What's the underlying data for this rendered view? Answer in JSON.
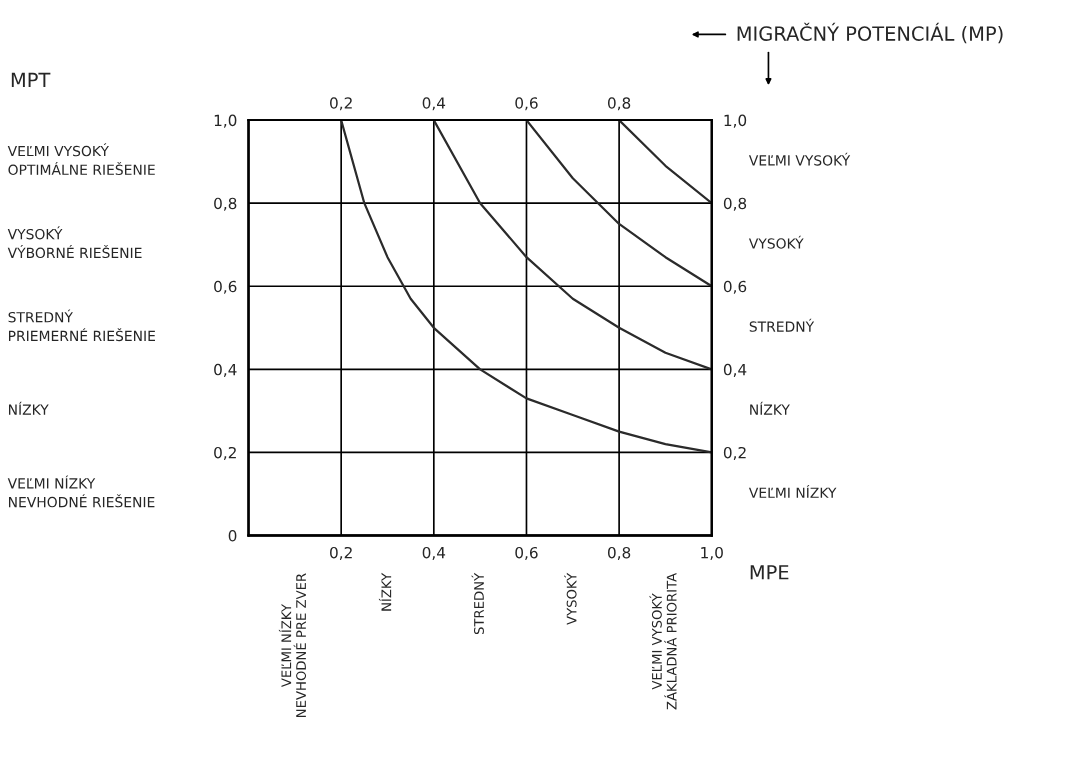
{
  "chart_data": {
    "type": "line",
    "title": "MIGRAČNÝ POTENCIÁL (MP)",
    "xlabel": "MPE",
    "xlim": [
      0,
      1
    ],
    "ylim": [
      0,
      1
    ],
    "y2lim": [
      0,
      1
    ],
    "x2lim": [
      0,
      1
    ],
    "xticks": [
      {
        "value": 0.2,
        "label": "0,2"
      },
      {
        "value": 0.4,
        "label": "0,4"
      },
      {
        "value": 0.6,
        "label": "0,6"
      },
      {
        "value": 0.8,
        "label": "0,8"
      },
      {
        "value": 1.0,
        "label": "1,0"
      }
    ],
    "x2ticks": [
      {
        "value": 0.2,
        "label": "0,2"
      },
      {
        "value": 0.4,
        "label": "0,4"
      },
      {
        "value": 0.6,
        "label": "0,6"
      },
      {
        "value": 0.8,
        "label": "0,8"
      }
    ],
    "yticks": [
      0,
      {
        "value": 0.2,
        "label": "0,2"
      },
      {
        "value": 0.4,
        "label": "0,4"
      },
      {
        "value": 0.6,
        "label": "0,6"
      },
      {
        "value": 0.8,
        "label": "0,8"
      },
      {
        "value": 1.0,
        "label": "1,0"
      }
    ],
    "y2ticks": [
      {
        "value": 0.2,
        "label": "0,2"
      },
      {
        "value": 0.4,
        "label": "0,4"
      },
      {
        "value": 0.6,
        "label": "0,6"
      },
      {
        "value": 0.8,
        "label": "0,8"
      },
      {
        "value": 1.0,
        "label": "1,0"
      }
    ],
    "grid": true,
    "marker": "none",
    "line_style": "solid",
    "series": [
      {
        "color": "#2b2b2b",
        "x": [
          0.2,
          0.25,
          0.3,
          0.35,
          0.4,
          0.5,
          0.6,
          0.7,
          0.8,
          0.9,
          1.0
        ],
        "values": [
          1.0,
          0.8,
          0.67,
          0.57,
          0.5,
          0.4,
          0.33,
          0.29,
          0.25,
          0.22,
          0.2
        ]
      },
      {
        "color": "#2b2b2b",
        "x": [
          0.4,
          0.5,
          0.6,
          0.7,
          0.8,
          0.9,
          1.0
        ],
        "values": [
          1.0,
          0.8,
          0.67,
          0.57,
          0.5,
          0.44,
          0.4
        ]
      },
      {
        "color": "#2b2b2b",
        "x": [
          0.6,
          0.7,
          0.8,
          0.9,
          1.0
        ],
        "values": [
          1.0,
          0.86,
          0.75,
          0.67,
          0.6
        ]
      },
      {
        "color": "#2b2b2b",
        "x": [
          0.8,
          0.9,
          1.0
        ],
        "values": [
          1.0,
          0.89,
          0.8
        ]
      }
    ],
    "annotations": [
      "VEĽMI VYSOKÝ\nOPTIMÁLNE RIEŠENIE",
      "VYSOKÝ\nVÝBORNÉ RIEŠENIE",
      "STREDNÝ\nPRIEMERNÉ RIEŠENIE",
      "NÍZKY",
      "VEĽMI NÍZKY\nNEVHODNÉ RIEŠENIE",
      "VEĽMI VYSOKÝ",
      "VYSOKÝ",
      "STREDNÝ",
      "NÍZKY",
      "VEĽMI NÍZKY",
      "VEĽMI NÍZKY\nNEVHODNÉ PRE ZVER",
      "NÍZKY",
      "STREDNÝ",
      "VYSOKÝ",
      "VEĽMI VYSOKÝ\nZÁKLADNÁ PRIORITA",
      "MPT"
    ]
  }
}
